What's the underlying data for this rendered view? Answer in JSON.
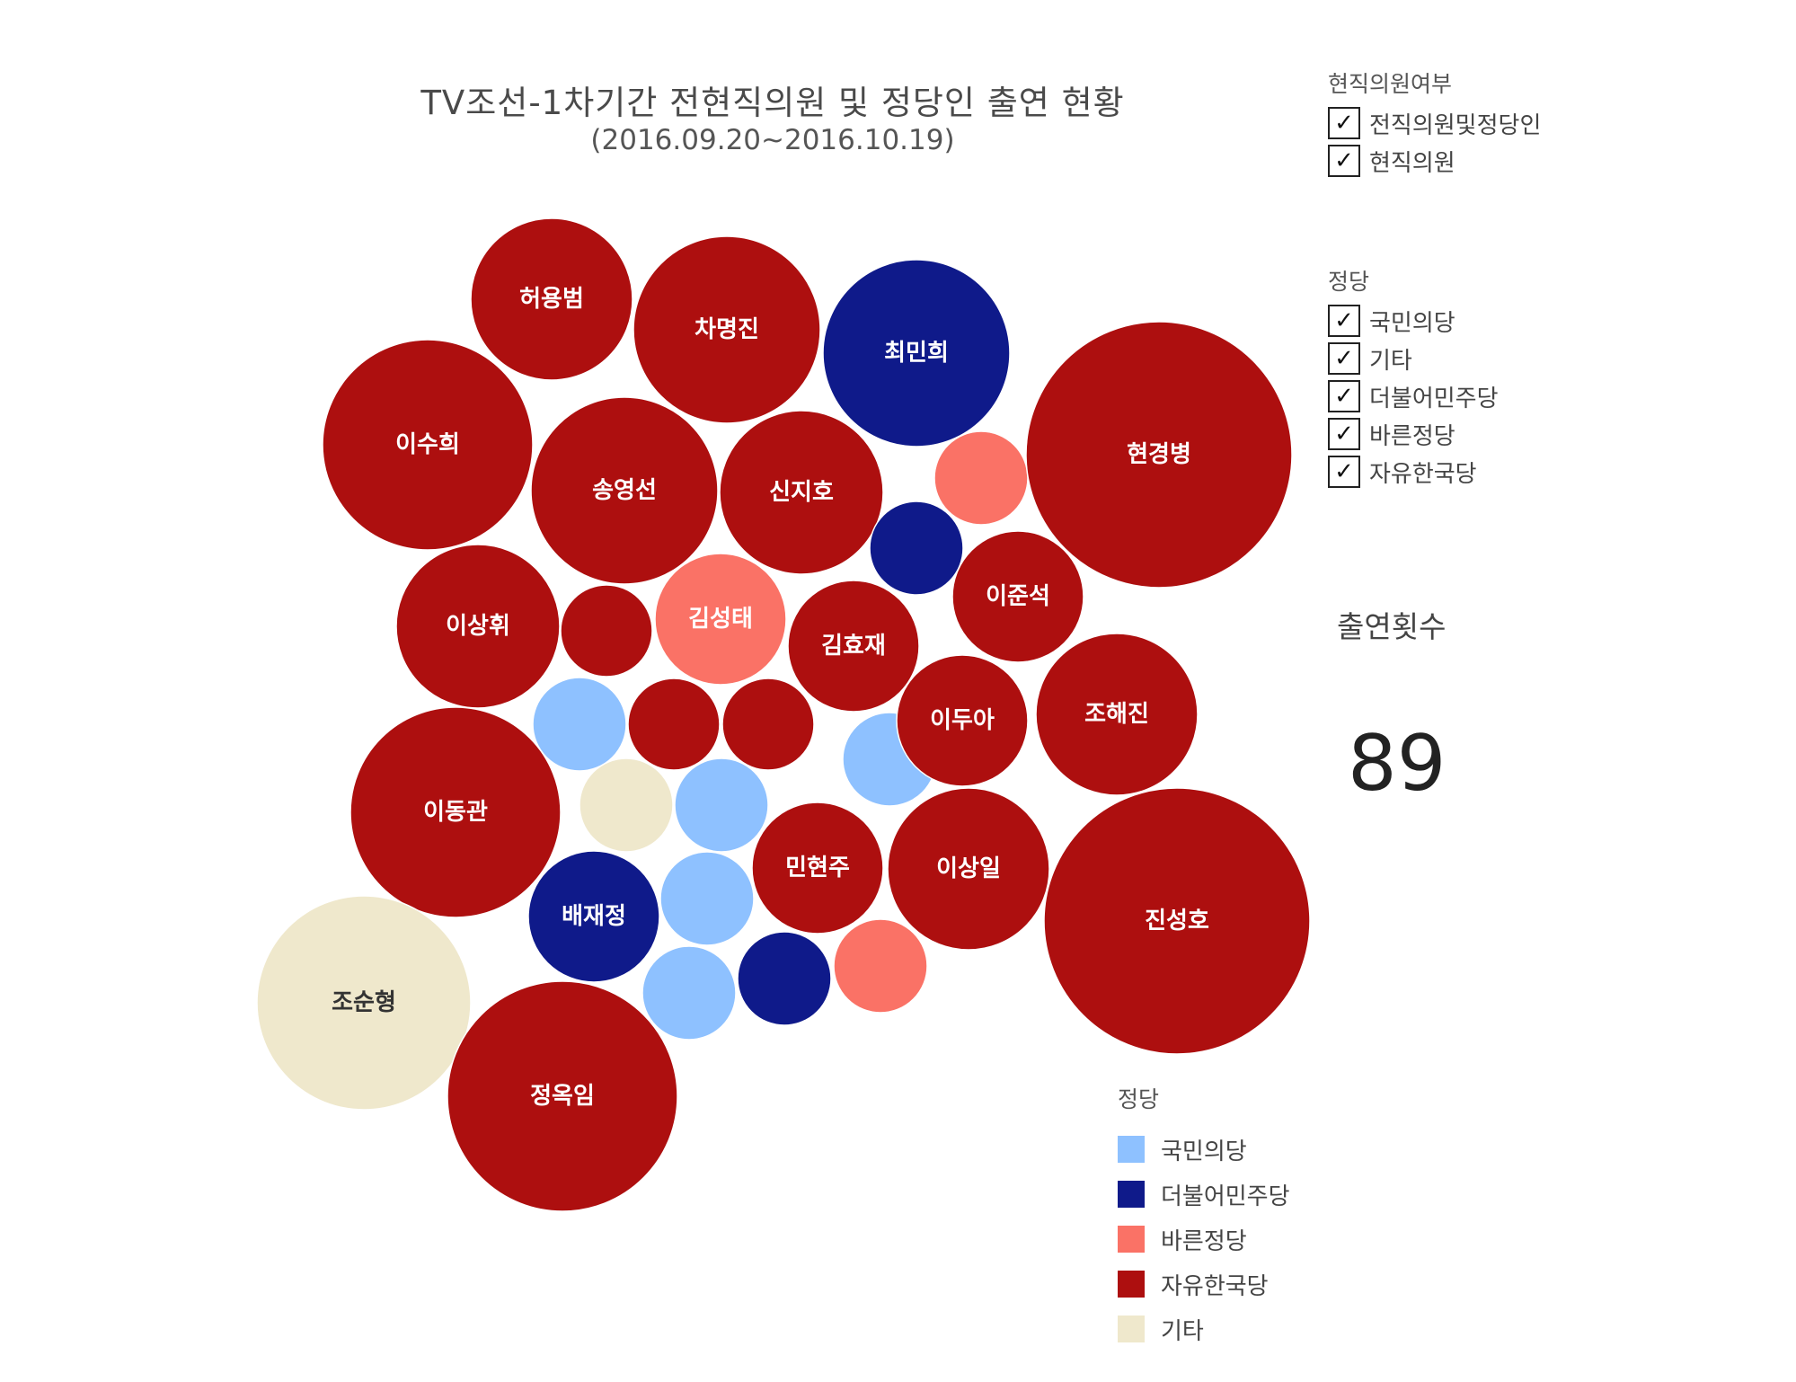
{
  "chart_data": {
    "type": "bubble",
    "title": "TV조선-1차기간 전현직의원 및 정당인 출연 현황",
    "subtitle": "(2016.09.20~2016.10.19)",
    "colors": {
      "국민의당": "#8ec1ff",
      "더불어민주당": "#0f1a8a",
      "바른정당": "#fa7266",
      "자유한국당": "#ad0f0f",
      "기타": "#efe8cc"
    },
    "bubbles": [
      {
        "name": "허용범",
        "party": "자유한국당"
      },
      {
        "name": "차명진",
        "party": "자유한국당"
      },
      {
        "name": "최민희",
        "party": "더불어민주당"
      },
      {
        "name": "이수희",
        "party": "자유한국당"
      },
      {
        "name": "송영선",
        "party": "자유한국당"
      },
      {
        "name": "신지호",
        "party": "자유한국당"
      },
      {
        "name": "",
        "party": "바른정당"
      },
      {
        "name": "현경병",
        "party": "자유한국당"
      },
      {
        "name": "",
        "party": "더불어민주당"
      },
      {
        "name": "이상휘",
        "party": "자유한국당"
      },
      {
        "name": "",
        "party": "자유한국당"
      },
      {
        "name": "김성태",
        "party": "바른정당"
      },
      {
        "name": "김효재",
        "party": "자유한국당"
      },
      {
        "name": "이준석",
        "party": "자유한국당"
      },
      {
        "name": "",
        "party": "국민의당"
      },
      {
        "name": "",
        "party": "자유한국당"
      },
      {
        "name": "",
        "party": "자유한국당"
      },
      {
        "name": "",
        "party": "국민의당"
      },
      {
        "name": "이두아",
        "party": "자유한국당"
      },
      {
        "name": "조해진",
        "party": "자유한국당"
      },
      {
        "name": "이동관",
        "party": "자유한국당"
      },
      {
        "name": "",
        "party": "기타"
      },
      {
        "name": "",
        "party": "국민의당"
      },
      {
        "name": "민현주",
        "party": "자유한국당"
      },
      {
        "name": "이상일",
        "party": "자유한국당"
      },
      {
        "name": "진성호",
        "party": "자유한국당"
      },
      {
        "name": "배재정",
        "party": "더불어민주당"
      },
      {
        "name": "",
        "party": "국민의당"
      },
      {
        "name": "조순형",
        "party": "기타"
      },
      {
        "name": "",
        "party": "국민의당"
      },
      {
        "name": "",
        "party": "더불어민주당"
      },
      {
        "name": "",
        "party": "바른정당"
      },
      {
        "name": "정옥임",
        "party": "자유한국당"
      }
    ]
  },
  "filters": {
    "incumbent": {
      "heading": "현직의원여부",
      "items": [
        "전직의원및정당인",
        "현직의원"
      ]
    },
    "party": {
      "heading": "정당",
      "items": [
        "국민의당",
        "기타",
        "더불어민주당",
        "바른정당",
        "자유한국당"
      ]
    },
    "check_glyph": "✓"
  },
  "count": {
    "label": "출연횟수",
    "value": "89"
  },
  "legend": {
    "heading": "정당",
    "items": [
      {
        "label": "국민의당",
        "color": "#8ec1ff"
      },
      {
        "label": "더불어민주당",
        "color": "#0f1a8a"
      },
      {
        "label": "바른정당",
        "color": "#fa7266"
      },
      {
        "label": "자유한국당",
        "color": "#ad0f0f"
      },
      {
        "label": "기타",
        "color": "#efe8cc"
      }
    ]
  }
}
